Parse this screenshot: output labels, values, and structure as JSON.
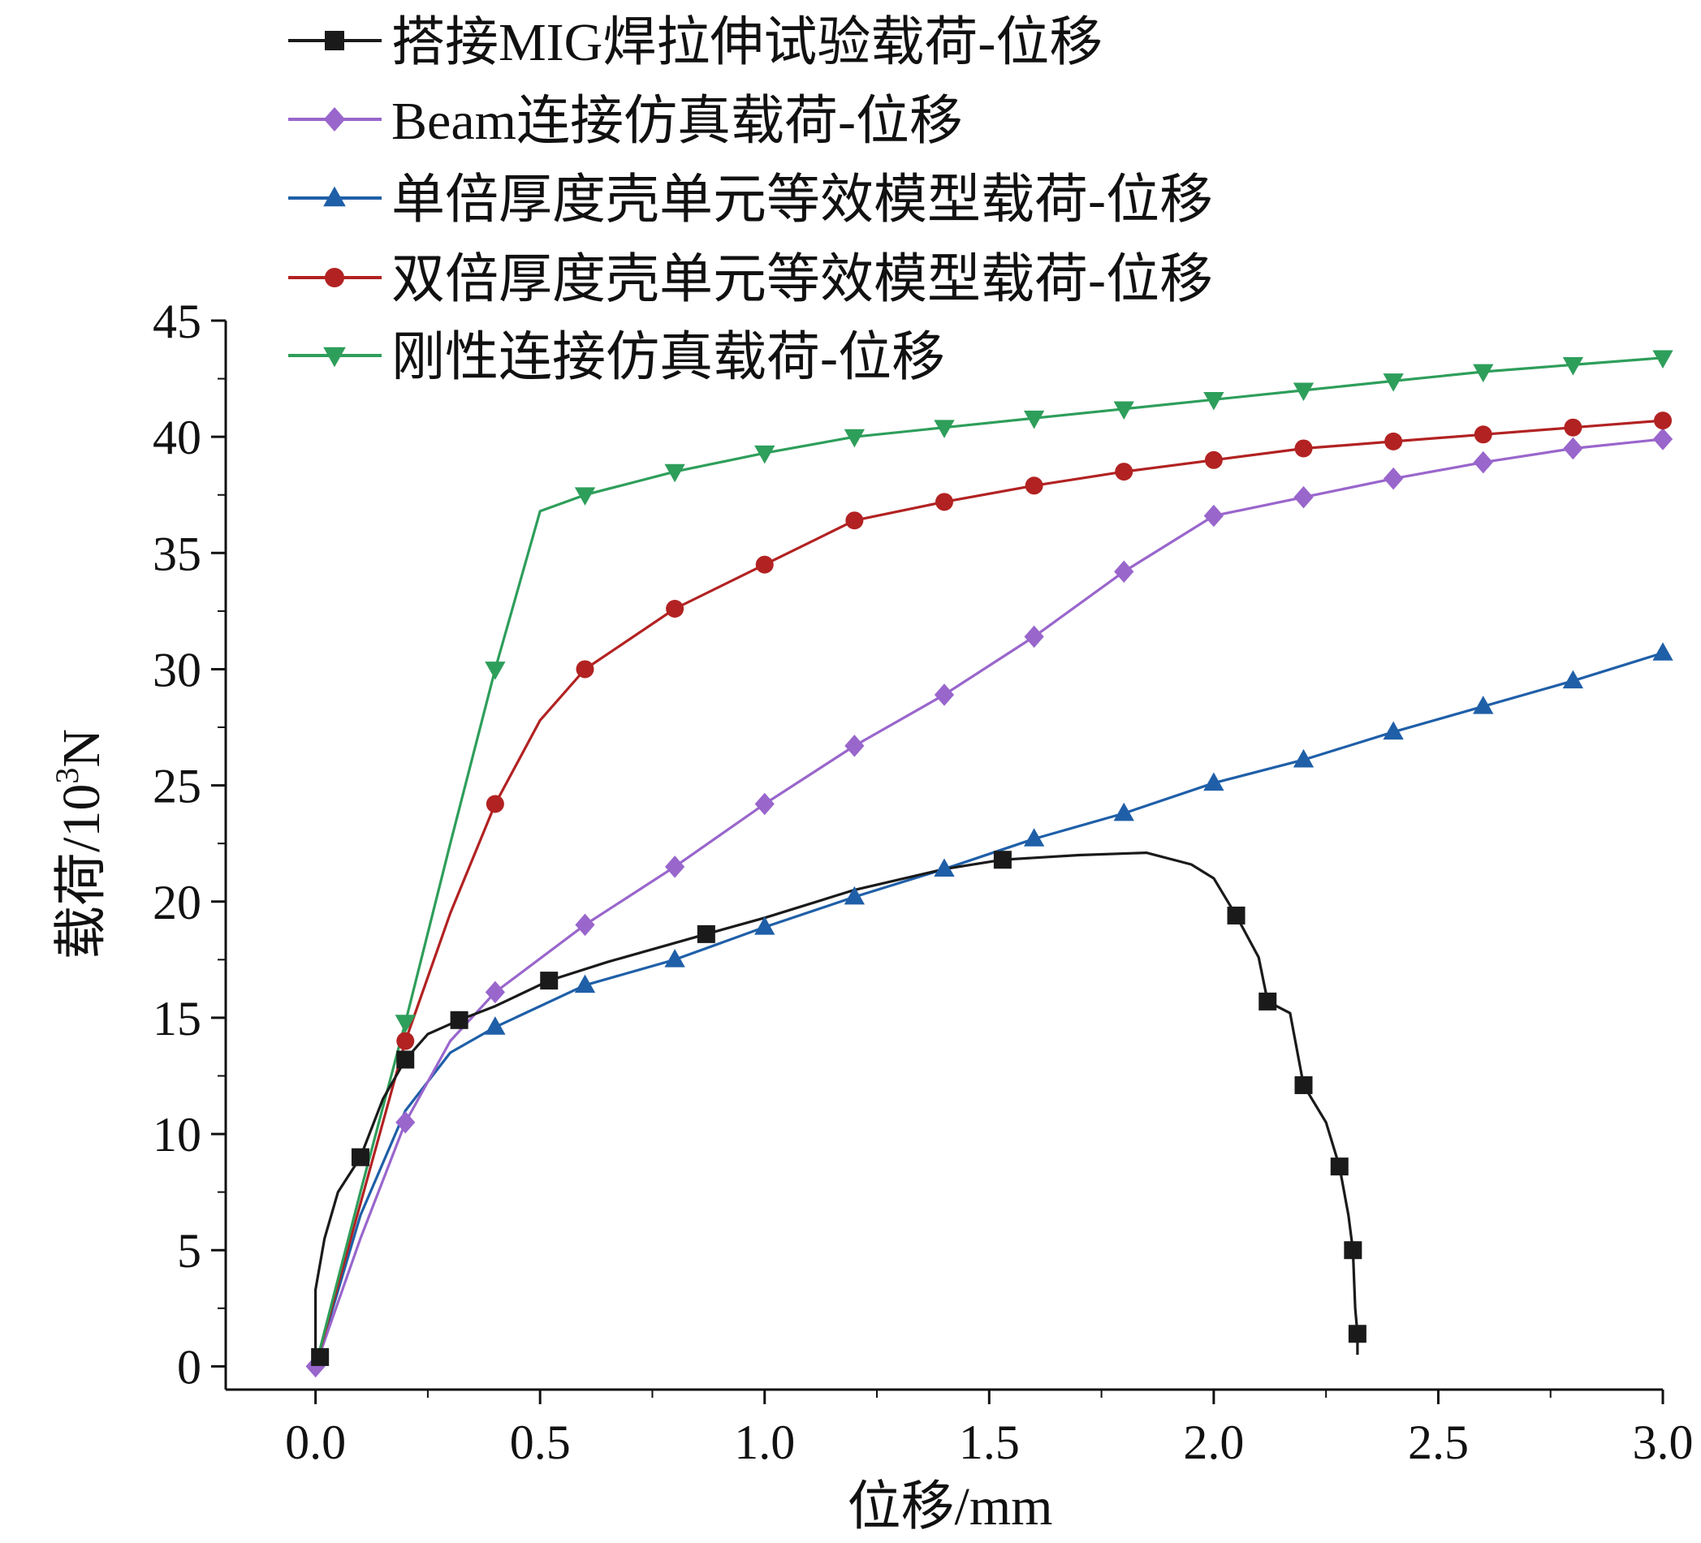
{
  "chart_data": {
    "type": "line",
    "title": "",
    "xlabel": "位移/mm",
    "ylabel": "载荷/10³N",
    "ylabel_parts": {
      "base": "载荷/10",
      "sup": "3",
      "tail": "N"
    },
    "xlim": [
      -0.2,
      3.0
    ],
    "ylim": [
      -1,
      45
    ],
    "xticks": [
      0.0,
      0.5,
      1.0,
      1.5,
      2.0,
      2.5,
      3.0
    ],
    "xtick_labels": [
      "0.0",
      "0.5",
      "1.0",
      "1.5",
      "2.0",
      "2.5",
      "3.0"
    ],
    "yticks": [
      0,
      5,
      10,
      15,
      20,
      25,
      30,
      35,
      40,
      45
    ],
    "ytick_labels": [
      "0",
      "5",
      "10",
      "15",
      "20",
      "25",
      "30",
      "35",
      "40",
      "45"
    ],
    "grid": false,
    "legend_position": "top-left",
    "series": [
      {
        "name": "搭接MIG焊拉伸试验载荷-位移",
        "color": "#1a1a1a",
        "marker": "square",
        "line": [
          [
            0.0,
            0.0
          ],
          [
            0.0,
            3.3
          ],
          [
            0.02,
            5.5
          ],
          [
            0.05,
            7.5
          ],
          [
            0.1,
            9.0
          ],
          [
            0.15,
            11.5
          ],
          [
            0.2,
            13.2
          ],
          [
            0.25,
            14.3
          ],
          [
            0.32,
            14.9
          ],
          [
            0.4,
            15.5
          ],
          [
            0.52,
            16.6
          ],
          [
            0.65,
            17.4
          ],
          [
            0.87,
            18.6
          ],
          [
            1.0,
            19.3
          ],
          [
            1.2,
            20.5
          ],
          [
            1.4,
            21.4
          ],
          [
            1.53,
            21.8
          ],
          [
            1.7,
            22.0
          ],
          [
            1.85,
            22.1
          ],
          [
            1.95,
            21.6
          ],
          [
            2.0,
            21.0
          ],
          [
            2.05,
            19.4
          ],
          [
            2.1,
            17.6
          ],
          [
            2.12,
            15.7
          ],
          [
            2.17,
            15.2
          ],
          [
            2.2,
            12.1
          ],
          [
            2.25,
            10.5
          ],
          [
            2.28,
            8.6
          ],
          [
            2.3,
            6.5
          ],
          [
            2.31,
            5.0
          ],
          [
            2.315,
            2.5
          ],
          [
            2.32,
            1.4
          ],
          [
            2.32,
            0.5
          ]
        ],
        "markers": [
          [
            0.01,
            0.4
          ],
          [
            0.1,
            9.0
          ],
          [
            0.2,
            13.2
          ],
          [
            0.32,
            14.9
          ],
          [
            0.52,
            16.6
          ],
          [
            0.87,
            18.6
          ],
          [
            1.53,
            21.8
          ],
          [
            2.05,
            19.4
          ],
          [
            2.12,
            15.7
          ],
          [
            2.2,
            12.1
          ],
          [
            2.28,
            8.6
          ],
          [
            2.31,
            5.0
          ],
          [
            2.32,
            1.4
          ]
        ]
      },
      {
        "name": "Beam连接仿真载荷-位移",
        "color": "#9966cc",
        "marker": "diamond",
        "line": [
          [
            0.0,
            0.0
          ],
          [
            0.1,
            5.5
          ],
          [
            0.2,
            10.5
          ],
          [
            0.3,
            14.0
          ],
          [
            0.4,
            16.1
          ],
          [
            0.6,
            19.0
          ],
          [
            0.8,
            21.5
          ],
          [
            1.0,
            24.2
          ],
          [
            1.2,
            26.7
          ],
          [
            1.4,
            28.9
          ],
          [
            1.6,
            31.4
          ],
          [
            1.8,
            34.2
          ],
          [
            2.0,
            36.6
          ],
          [
            2.2,
            37.4
          ],
          [
            2.4,
            38.2
          ],
          [
            2.6,
            38.9
          ],
          [
            2.8,
            39.5
          ],
          [
            3.0,
            39.9
          ]
        ],
        "markers": [
          [
            0.0,
            0.0
          ],
          [
            0.2,
            10.5
          ],
          [
            0.4,
            16.1
          ],
          [
            0.6,
            19.0
          ],
          [
            0.8,
            21.5
          ],
          [
            1.0,
            24.2
          ],
          [
            1.2,
            26.7
          ],
          [
            1.4,
            28.9
          ],
          [
            1.6,
            31.4
          ],
          [
            1.8,
            34.2
          ],
          [
            2.0,
            36.6
          ],
          [
            2.2,
            37.4
          ],
          [
            2.4,
            38.2
          ],
          [
            2.6,
            38.9
          ],
          [
            2.8,
            39.5
          ],
          [
            3.0,
            39.9
          ]
        ]
      },
      {
        "name": "单倍厚度壳单元等效模型载荷-位移",
        "color": "#1f5fa8",
        "marker": "triangle-up",
        "line": [
          [
            0.0,
            0.0
          ],
          [
            0.1,
            6.5
          ],
          [
            0.2,
            11.0
          ],
          [
            0.3,
            13.5
          ],
          [
            0.4,
            14.6
          ],
          [
            0.6,
            16.4
          ],
          [
            0.8,
            17.5
          ],
          [
            1.0,
            18.9
          ],
          [
            1.2,
            20.2
          ],
          [
            1.4,
            21.4
          ],
          [
            1.6,
            22.7
          ],
          [
            1.8,
            23.8
          ],
          [
            2.0,
            25.1
          ],
          [
            2.2,
            26.1
          ],
          [
            2.4,
            27.3
          ],
          [
            2.6,
            28.4
          ],
          [
            2.8,
            29.5
          ],
          [
            3.0,
            30.7
          ]
        ],
        "markers": [
          [
            0.4,
            14.6
          ],
          [
            0.6,
            16.4
          ],
          [
            0.8,
            17.5
          ],
          [
            1.0,
            18.9
          ],
          [
            1.2,
            20.2
          ],
          [
            1.4,
            21.4
          ],
          [
            1.6,
            22.7
          ],
          [
            1.8,
            23.8
          ],
          [
            2.0,
            25.1
          ],
          [
            2.2,
            26.1
          ],
          [
            2.4,
            27.3
          ],
          [
            2.6,
            28.4
          ],
          [
            2.8,
            29.5
          ],
          [
            3.0,
            30.7
          ]
        ]
      },
      {
        "name": "双倍厚度壳单元等效模型载荷-位移",
        "color": "#b22222",
        "marker": "circle",
        "line": [
          [
            0.0,
            0.0
          ],
          [
            0.1,
            7.0
          ],
          [
            0.2,
            14.0
          ],
          [
            0.3,
            19.5
          ],
          [
            0.4,
            24.2
          ],
          [
            0.5,
            27.8
          ],
          [
            0.6,
            30.0
          ],
          [
            0.8,
            32.6
          ],
          [
            1.0,
            34.5
          ],
          [
            1.2,
            36.4
          ],
          [
            1.4,
            37.2
          ],
          [
            1.6,
            37.9
          ],
          [
            1.8,
            38.5
          ],
          [
            2.0,
            39.0
          ],
          [
            2.2,
            39.5
          ],
          [
            2.4,
            39.8
          ],
          [
            2.6,
            40.1
          ],
          [
            2.8,
            40.4
          ],
          [
            3.0,
            40.7
          ]
        ],
        "markers": [
          [
            0.2,
            14.0
          ],
          [
            0.4,
            24.2
          ],
          [
            0.6,
            30.0
          ],
          [
            0.8,
            32.6
          ],
          [
            1.0,
            34.5
          ],
          [
            1.2,
            36.4
          ],
          [
            1.4,
            37.2
          ],
          [
            1.6,
            37.9
          ],
          [
            1.8,
            38.5
          ],
          [
            2.0,
            39.0
          ],
          [
            2.2,
            39.5
          ],
          [
            2.4,
            39.8
          ],
          [
            2.6,
            40.1
          ],
          [
            2.8,
            40.4
          ],
          [
            3.0,
            40.7
          ]
        ]
      },
      {
        "name": "刚性连接仿真载荷-位移",
        "color": "#2e9e5b",
        "marker": "triangle-down",
        "line": [
          [
            0.0,
            0.0
          ],
          [
            0.1,
            7.5
          ],
          [
            0.2,
            14.8
          ],
          [
            0.3,
            22.5
          ],
          [
            0.4,
            30.0
          ],
          [
            0.5,
            36.8
          ],
          [
            0.6,
            37.5
          ],
          [
            0.8,
            38.5
          ],
          [
            1.0,
            39.3
          ],
          [
            1.2,
            40.0
          ],
          [
            1.4,
            40.4
          ],
          [
            1.6,
            40.8
          ],
          [
            1.8,
            41.2
          ],
          [
            2.0,
            41.6
          ],
          [
            2.2,
            42.0
          ],
          [
            2.4,
            42.4
          ],
          [
            2.6,
            42.8
          ],
          [
            2.8,
            43.1
          ],
          [
            3.0,
            43.4
          ]
        ],
        "markers": [
          [
            0.2,
            14.8
          ],
          [
            0.4,
            30.0
          ],
          [
            0.6,
            37.5
          ],
          [
            0.8,
            38.5
          ],
          [
            1.0,
            39.3
          ],
          [
            1.2,
            40.0
          ],
          [
            1.4,
            40.4
          ],
          [
            1.6,
            40.8
          ],
          [
            1.8,
            41.2
          ],
          [
            2.0,
            41.6
          ],
          [
            2.2,
            42.0
          ],
          [
            2.4,
            42.4
          ],
          [
            2.6,
            42.8
          ],
          [
            2.8,
            43.1
          ],
          [
            3.0,
            43.4
          ]
        ]
      }
    ]
  }
}
